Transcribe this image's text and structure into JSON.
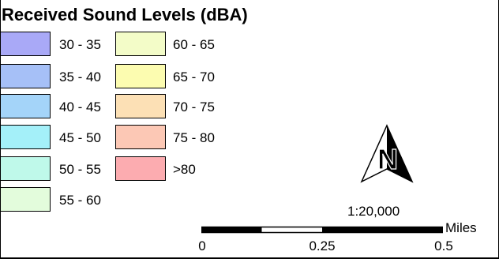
{
  "legend": {
    "title": "Received Sound Levels (dBA)",
    "items": [
      {
        "label": "30 - 35",
        "color": "#a9a9f7"
      },
      {
        "label": "35 - 40",
        "color": "#a6c0f7"
      },
      {
        "label": "40 - 45",
        "color": "#a4d4f9"
      },
      {
        "label": "45 - 50",
        "color": "#a4f0f9"
      },
      {
        "label": "50 - 55",
        "color": "#bff9ea"
      },
      {
        "label": "55 - 60",
        "color": "#e3fcdc"
      },
      {
        "label": "60 - 65",
        "color": "#f3fcc8"
      },
      {
        "label": "65 - 70",
        "color": "#fcfcb0"
      },
      {
        "label": "70 - 75",
        "color": "#fce0b5"
      },
      {
        "label": "75 - 80",
        "color": "#fcc8b5"
      },
      {
        "label": ">80",
        "color": "#fcacb0"
      }
    ]
  },
  "north_arrow": {
    "letter": "N"
  },
  "scale": {
    "ratio": "1:20,000",
    "ticks": [
      "0",
      "0.25",
      "0.5"
    ],
    "units": "Miles"
  }
}
